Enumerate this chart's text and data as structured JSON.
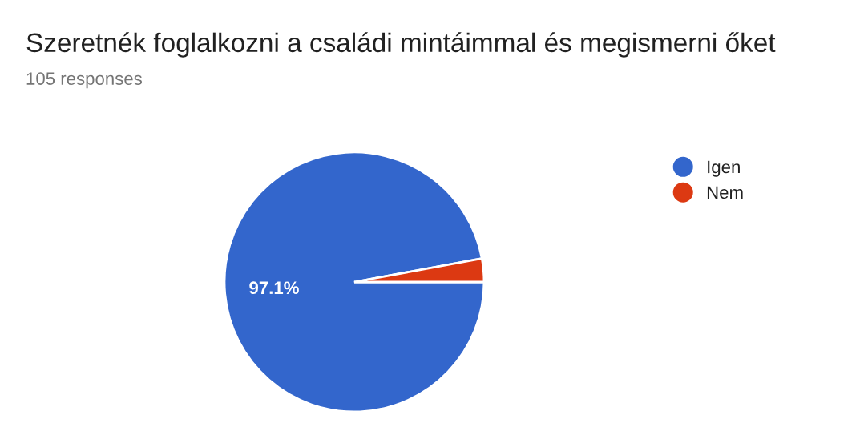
{
  "chart_data": {
    "type": "pie",
    "title": "Szeretnék foglalkozni a családi mintáimmal és megismerni őket",
    "subtitle": "105 responses",
    "categories": [
      "Igen",
      "Nem"
    ],
    "values": [
      97.1,
      2.9
    ],
    "colors": [
      "#3366cc",
      "#dc3912"
    ],
    "value_labels": [
      "97.1%",
      null
    ],
    "legend": "right"
  }
}
